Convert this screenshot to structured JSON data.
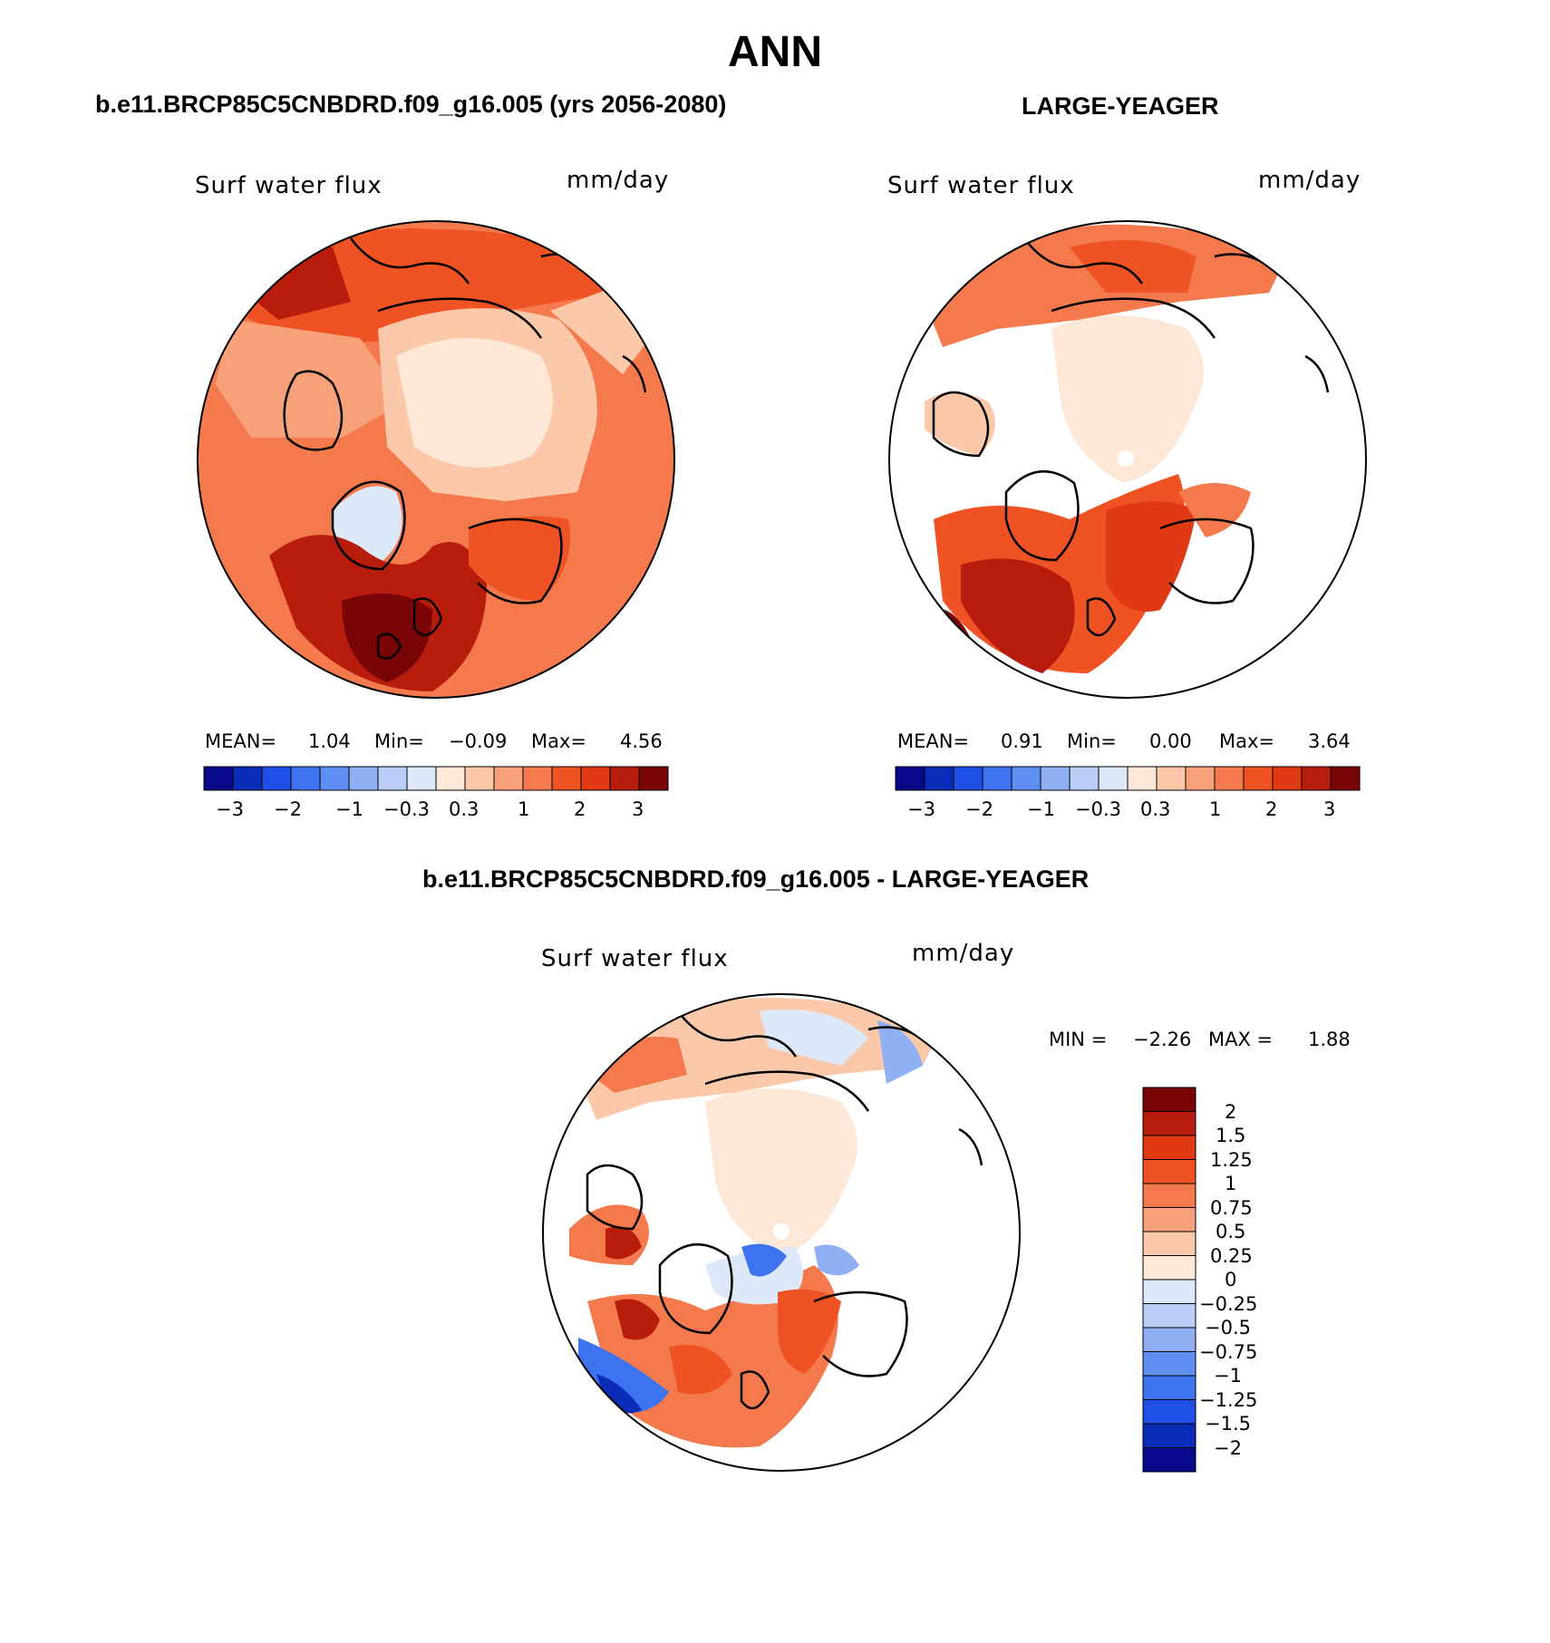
{
  "figure_title": "ANN",
  "panels": [
    {
      "case_title": "b.e11.BRCP85C5CNBDRD.f09_g16.005 (yrs 2056-2080)",
      "variable": "Surf water flux",
      "units": "mm/day",
      "stats": {
        "mean_label": "MEAN=",
        "mean": "1.04",
        "min_label": "Min=",
        "min": "−0.09",
        "max_label": "Max=",
        "max": "4.56"
      },
      "colorbar_ticks": [
        "−3",
        "−2",
        "−1",
        "−0.3",
        "0.3",
        "1",
        "2",
        "3"
      ]
    },
    {
      "case_title": "LARGE-YEAGER",
      "variable": "Surf water flux",
      "units": "mm/day",
      "stats": {
        "mean_label": "MEAN=",
        "mean": "0.91",
        "min_label": "Min=",
        "min": "0.00",
        "max_label": "Max=",
        "max": "3.64"
      },
      "colorbar_ticks": [
        "−3",
        "−2",
        "−1",
        "−0.3",
        "0.3",
        "1",
        "2",
        "3"
      ]
    },
    {
      "case_title": "b.e11.BRCP85C5CNBDRD.f09_g16.005 - LARGE-YEAGER",
      "variable": "Surf water flux",
      "units": "mm/day",
      "stats": {
        "min_label": "MIN =",
        "min": "−2.26",
        "max_label": "MAX =",
        "max": "1.88"
      },
      "colorbar_ticks": [
        "2",
        "1.5",
        "1.25",
        "1",
        "0.75",
        "0.5",
        "0.25",
        "0",
        "−0.25",
        "−0.5",
        "−0.75",
        "−1",
        "−1.25",
        "−1.5",
        "−2"
      ]
    }
  ],
  "colors": {
    "abs_scale": [
      "#08088a",
      "#0b2cb8",
      "#1f4fe6",
      "#3d73f0",
      "#5f8ff3",
      "#8fb0f5",
      "#b9cdf7",
      "#dde9f8",
      "#fde8d8",
      "#fbc9aa",
      "#f7a07a",
      "#f47a4e",
      "#ef5323",
      "#e03a14",
      "#b81c0c",
      "#7a0506"
    ],
    "diff_scale": [
      "#7a0506",
      "#b81c0c",
      "#e03a14",
      "#ef5323",
      "#f47a4e",
      "#f7a07a",
      "#fbc9aa",
      "#fde8d8",
      "#dde9f8",
      "#b9cdf7",
      "#8fb0f5",
      "#5f8ff3",
      "#3d73f0",
      "#1f4fe6",
      "#0b2cb8",
      "#08088a"
    ]
  }
}
